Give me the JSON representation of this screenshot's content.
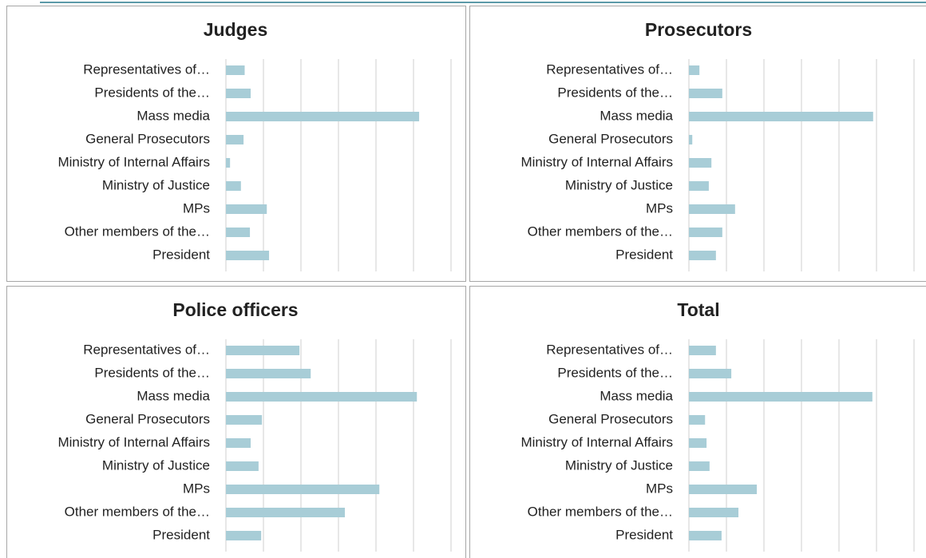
{
  "chart_data": [
    {
      "type": "bar",
      "orientation": "horizontal",
      "title": "Judges",
      "categories": [
        "Representatives of…",
        "Presidents of the…",
        "Mass media",
        "General Prosecutors",
        "Ministry of Internal Affairs",
        "Ministry of Justice",
        "MPs",
        "Other members of the…",
        "President"
      ],
      "values": [
        5,
        6.6,
        51.5,
        4.7,
        1.1,
        4,
        10.9,
        6.4,
        11.5
      ],
      "xlim": [
        0,
        60
      ],
      "xticks": [
        0,
        10,
        20,
        30,
        40,
        50,
        60
      ],
      "grid": true,
      "color": "#a8cdd7"
    },
    {
      "type": "bar",
      "orientation": "horizontal",
      "title": "Prosecutors",
      "categories": [
        "Representatives of…",
        "Presidents of the…",
        "Mass media",
        "General Prosecutors",
        "Ministry of Internal Affairs",
        "Ministry of Justice",
        "MPs",
        "Other members of the…",
        "President"
      ],
      "values": [
        2.8,
        8.9,
        49.1,
        0.9,
        6,
        5.3,
        12.3,
        8.9,
        7.2
      ],
      "xlim": [
        0,
        60
      ],
      "xticks": [
        0,
        10,
        20,
        30,
        40,
        50,
        60
      ],
      "grid": true,
      "color": "#a8cdd7"
    },
    {
      "type": "bar",
      "orientation": "horizontal",
      "title": "Police officers",
      "categories": [
        "Representatives of…",
        "Presidents of the…",
        "Mass media",
        "General Prosecutors",
        "Ministry of Internal Affairs",
        "Ministry of Justice",
        "MPs",
        "Other members of the…",
        "President"
      ],
      "values": [
        19.6,
        22.6,
        50.9,
        9.6,
        6.6,
        8.7,
        40.9,
        31.7,
        9.4
      ],
      "xlim": [
        0,
        60
      ],
      "xticks": [
        0,
        10,
        20,
        30,
        40,
        50,
        60
      ],
      "grid": true,
      "color": "#a8cdd7"
    },
    {
      "type": "bar",
      "orientation": "horizontal",
      "title": "Total",
      "categories": [
        "Representatives of…",
        "Presidents of the…",
        "Mass media",
        "General Prosecutors",
        "Ministry of Internal Affairs",
        "Ministry of Justice",
        "MPs",
        "Other members of the…",
        "President"
      ],
      "values": [
        7.2,
        11.3,
        48.9,
        4.3,
        4.7,
        5.5,
        18.1,
        13.2,
        8.7
      ],
      "xlim": [
        0,
        60
      ],
      "xticks": [
        0,
        10,
        20,
        30,
        40,
        50,
        60
      ],
      "grid": true,
      "color": "#a8cdd7"
    }
  ]
}
